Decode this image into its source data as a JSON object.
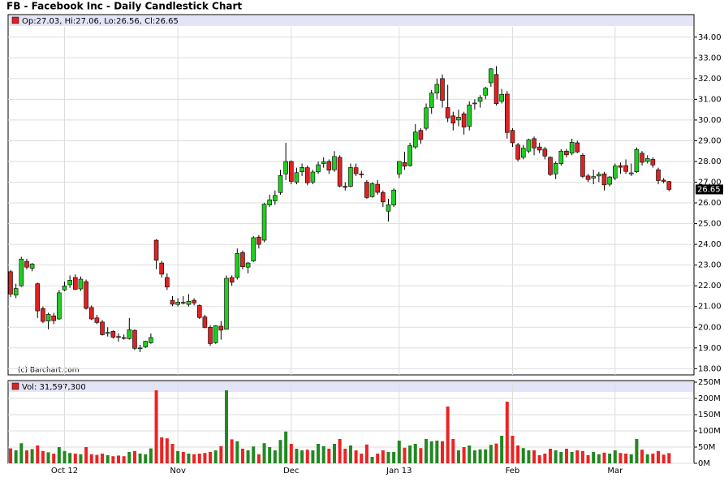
{
  "chart_data": {
    "type": "candlestick",
    "title": "FB - Facebook Inc - Daily Candlestick Chart",
    "legend": "Op:27.03, Hi:27.06, Lo:26.56, Cl:26.65",
    "volume_legend": "Vol: 31,597,300",
    "annotation": "(c) Barchart.com",
    "up_color": "#22cc22",
    "down_color": "#dd2222",
    "volume_up_color": "#228822",
    "volume_down_color": "#ee2222",
    "grid": true,
    "categories": [
      null,
      null,
      null,
      null,
      null,
      null,
      null,
      null,
      null,
      null,
      "Oct 12",
      null,
      null,
      null,
      null,
      null,
      null,
      null,
      null,
      null,
      null,
      null,
      null,
      null,
      null,
      null,
      null,
      null,
      null,
      null,
      null,
      "Nov",
      null,
      null,
      null,
      null,
      null,
      null,
      null,
      null,
      null,
      null,
      null,
      null,
      null,
      null,
      null,
      null,
      null,
      null,
      null,
      null,
      "Dec",
      null,
      null,
      null,
      null,
      null,
      null,
      null,
      null,
      null,
      null,
      null,
      null,
      null,
      null,
      null,
      null,
      null,
      null,
      null,
      "Jan 13",
      null,
      null,
      null,
      null,
      null,
      null,
      null,
      null,
      null,
      null,
      null,
      null,
      null,
      null,
      null,
      null,
      null,
      null,
      null,
      null,
      "Feb",
      null,
      null,
      null,
      null,
      null,
      null,
      null,
      null,
      null,
      null,
      null,
      null,
      null,
      null,
      null,
      null,
      null,
      null,
      "Mar",
      null,
      null,
      null,
      null,
      null,
      null,
      null,
      null,
      null,
      null
    ],
    "open": [
      22.68,
      21.55,
      22.0,
      23.18,
      22.85,
      22.1,
      20.9,
      20.3,
      20.55,
      20.4,
      21.8,
      22.05,
      22.4,
      21.85,
      22.2,
      20.95,
      20.45,
      20.25,
      19.7,
      19.8,
      19.55,
      19.5,
      19.45,
      19.85,
      19.0,
      19.05,
      19.25,
      24.2,
      23.1,
      22.4,
      21.3,
      21.1,
      21.2,
      21.1,
      21.3,
      21.05,
      20.5,
      20.0,
      19.25,
      20.05,
      19.9,
      22.4,
      22.4,
      23.6,
      22.9,
      23.2,
      24.35,
      24.2,
      25.9,
      26.1,
      26.5,
      27.4,
      28.0,
      27.0,
      27.5,
      27.7,
      27.0,
      27.5,
      27.9,
      28.0,
      27.6,
      28.2,
      26.8,
      26.8,
      27.7,
      27.4,
      27.0,
      26.3,
      26.9,
      26.5,
      25.6,
      25.9,
      27.4,
      27.95,
      27.8,
      28.7,
      29.5,
      29.6,
      30.6,
      31.3,
      32.0,
      30.6,
      30.2,
      30.0,
      30.3,
      29.7,
      30.8,
      30.9,
      31.2,
      31.8,
      32.2,
      30.9,
      31.25,
      29.5,
      28.8,
      28.2,
      28.5,
      29.1,
      28.7,
      28.6,
      28.2,
      27.4,
      27.9,
      28.5,
      28.4,
      28.9,
      28.3,
      27.3,
      27.2,
      27.3,
      27.4,
      26.9,
      27.2,
      27.8,
      27.8,
      27.4,
      27.5,
      28.4,
      28.0,
      28.1,
      27.6,
      27.1,
      27.03
    ],
    "high": [
      22.76,
      22.1,
      23.4,
      23.3,
      23.1,
      22.15,
      21.0,
      20.7,
      20.7,
      21.8,
      22.2,
      22.5,
      22.55,
      22.45,
      22.3,
      21.05,
      20.6,
      20.35,
      20.0,
      19.85,
      19.7,
      19.65,
      20.45,
      19.9,
      19.15,
      19.35,
      19.7,
      24.25,
      23.2,
      22.6,
      21.5,
      21.4,
      21.5,
      21.6,
      21.4,
      21.1,
      20.6,
      20.1,
      20.1,
      20.3,
      22.5,
      22.5,
      23.8,
      23.7,
      23.15,
      24.4,
      24.45,
      26.0,
      26.4,
      26.6,
      27.6,
      28.9,
      28.05,
      27.7,
      27.9,
      27.8,
      27.6,
      28.0,
      28.2,
      28.1,
      28.5,
      28.3,
      27.0,
      27.9,
      27.9,
      27.55,
      27.1,
      27.0,
      27.1,
      26.6,
      26.2,
      26.7,
      28.0,
      28.47,
      28.9,
      29.8,
      29.6,
      30.8,
      31.45,
      32.0,
      32.2,
      31.7,
      30.4,
      30.5,
      30.4,
      30.9,
      31.0,
      31.2,
      31.6,
      32.5,
      32.6,
      31.5,
      31.4,
      29.6,
      28.9,
      28.8,
      29.1,
      29.2,
      28.9,
      28.7,
      28.25,
      28.0,
      28.6,
      28.6,
      29.1,
      29.0,
      28.4,
      27.4,
      27.6,
      27.5,
      27.5,
      27.3,
      27.9,
      27.95,
      28.1,
      27.9,
      28.68,
      28.5,
      28.3,
      28.2,
      27.7,
      27.2,
      27.06
    ],
    "low": [
      21.46,
      21.4,
      21.95,
      22.8,
      22.7,
      20.45,
      20.2,
      19.9,
      20.15,
      20.35,
      21.75,
      21.9,
      21.8,
      21.75,
      20.85,
      20.35,
      20.15,
      19.6,
      19.55,
      19.45,
      19.3,
      19.4,
      19.4,
      18.9,
      18.8,
      19.0,
      19.2,
      22.8,
      22.4,
      21.8,
      21.02,
      21.0,
      21.1,
      21.0,
      21.05,
      20.4,
      19.95,
      19.1,
      19.2,
      19.4,
      19.9,
      22.0,
      22.3,
      22.8,
      22.6,
      23.15,
      23.8,
      24.1,
      25.8,
      25.9,
      26.4,
      27.1,
      26.9,
      26.9,
      27.3,
      26.85,
      26.9,
      27.4,
      27.7,
      27.4,
      27.5,
      26.75,
      26.6,
      26.75,
      27.3,
      27.2,
      26.2,
      26.25,
      26.4,
      25.8,
      25.1,
      25.8,
      27.2,
      27.6,
      27.75,
      28.6,
      28.85,
      29.5,
      30.3,
      31.0,
      30.6,
      29.9,
      29.5,
      29.7,
      29.3,
      29.5,
      30.5,
      30.6,
      31.0,
      31.6,
      30.7,
      30.8,
      29.1,
      28.7,
      28.0,
      28.1,
      28.4,
      28.3,
      28.4,
      28.1,
      27.3,
      27.15,
      27.8,
      28.2,
      28.3,
      28.4,
      27.2,
      27.0,
      26.9,
      27.0,
      26.6,
      26.8,
      27.1,
      27.4,
      27.4,
      27.3,
      27.45,
      27.8,
      27.9,
      27.7,
      26.9,
      26.95,
      26.56
    ],
    "close": [
      21.6,
      21.87,
      23.29,
      22.9,
      23.05,
      20.79,
      20.28,
      20.62,
      20.32,
      21.66,
      21.99,
      22.27,
      21.83,
      22.32,
      20.91,
      20.4,
      20.23,
      19.64,
      19.75,
      19.52,
      19.52,
      19.48,
      19.88,
      18.98,
      19.0,
      19.32,
      19.5,
      23.23,
      22.56,
      21.94,
      21.11,
      21.21,
      21.18,
      21.25,
      21.17,
      20.47,
      19.99,
      19.21,
      20.07,
      19.86,
      22.36,
      22.17,
      23.56,
      22.92,
      23.1,
      24.32,
      24.0,
      25.94,
      26.15,
      26.36,
      27.32,
      28.0,
      27.04,
      27.46,
      27.71,
      26.97,
      27.49,
      27.84,
      27.98,
      27.58,
      28.24,
      26.81,
      26.75,
      27.71,
      27.41,
      27.36,
      26.26,
      26.93,
      26.51,
      26.05,
      25.91,
      26.62,
      28.0,
      27.77,
      28.76,
      29.42,
      29.06,
      30.59,
      31.3,
      31.72,
      30.95,
      30.1,
      29.85,
      30.14,
      29.66,
      30.73,
      30.82,
      31.08,
      31.54,
      32.47,
      30.79,
      31.24,
      29.4,
      28.9,
      28.11,
      28.64,
      29.05,
      28.65,
      28.55,
      28.26,
      27.37,
      27.91,
      28.5,
      28.32,
      28.93,
      28.46,
      27.28,
      27.13,
      27.27,
      27.39,
      26.87,
      27.25,
      27.78,
      27.72,
      27.52,
      27.45,
      28.58,
      27.96,
      28.14,
      27.83,
      27.08,
      27.04,
      26.65
    ],
    "volume": [
      46,
      40,
      62,
      40,
      44,
      55,
      38,
      34,
      30,
      50,
      38,
      32,
      30,
      28,
      50,
      28,
      26,
      30,
      25,
      22,
      24,
      22,
      35,
      38,
      30,
      28,
      46,
      225,
      80,
      77,
      60,
      38,
      35,
      30,
      28,
      30,
      32,
      35,
      40,
      53,
      225,
      74,
      68,
      45,
      40,
      52,
      28,
      62,
      50,
      40,
      72,
      98,
      60,
      45,
      40,
      42,
      40,
      60,
      53,
      45,
      60,
      75,
      45,
      55,
      40,
      30,
      58,
      20,
      30,
      40,
      35,
      35,
      70,
      48,
      55,
      60,
      47,
      75,
      68,
      70,
      68,
      175,
      75,
      40,
      50,
      55,
      40,
      43,
      43,
      57,
      61,
      85,
      190,
      85,
      55,
      47,
      40,
      40,
      25,
      30,
      45,
      40,
      35,
      45,
      35,
      40,
      38,
      25,
      35,
      28,
      33,
      30,
      40,
      32,
      30,
      28,
      75,
      42,
      28,
      30,
      38,
      27,
      31.5973
    ],
    "ylim": [
      17.7,
      34.5
    ],
    "yticks": [
      {
        "value": 18,
        "label": "18.00"
      },
      {
        "value": 19,
        "label": "19.00"
      },
      {
        "value": 20,
        "label": "20.00"
      },
      {
        "value": 21,
        "label": "21.00"
      },
      {
        "value": 22,
        "label": "22.00"
      },
      {
        "value": 23,
        "label": "23.00"
      },
      {
        "value": 24,
        "label": "24.00"
      },
      {
        "value": 25,
        "label": "25.00"
      },
      {
        "value": 26,
        "label": "26.00"
      },
      {
        "value": 27,
        "label": "27.00"
      },
      {
        "value": 28,
        "label": "28.00"
      },
      {
        "value": 29,
        "label": "29.00"
      },
      {
        "value": 30,
        "label": "30.00"
      },
      {
        "value": 31,
        "label": "31.00"
      },
      {
        "value": 32,
        "label": "32.00"
      },
      {
        "value": 33,
        "label": "33.00"
      },
      {
        "value": 34,
        "label": "34.00"
      }
    ],
    "volume_ylim": [
      0,
      250
    ],
    "volume_yticks": [
      {
        "value": 0,
        "label": "0M"
      },
      {
        "value": 50,
        "label": "50M"
      },
      {
        "value": 100,
        "label": "100M"
      },
      {
        "value": 150,
        "label": "150M"
      },
      {
        "value": 200,
        "label": "200M"
      },
      {
        "value": 250,
        "label": "250M"
      }
    ]
  }
}
